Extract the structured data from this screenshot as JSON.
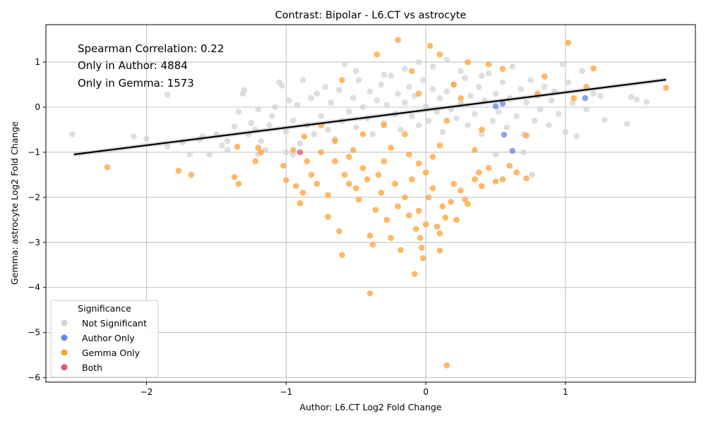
{
  "chart_data": {
    "type": "scatter",
    "title": "Contrast: Bipolar - L6.CT vs astrocyte",
    "xlabel": "Author: L6.CT Log2 Fold Change",
    "ylabel": "Gemma: astrocyte Log2 Fold Change",
    "xlim": [
      -2.72,
      1.93
    ],
    "ylim": [
      -6.1,
      1.83
    ],
    "xticks": [
      -2,
      -1,
      0,
      1
    ],
    "yticks": [
      1,
      0,
      -1,
      -2,
      -3,
      -4,
      -5,
      -6
    ],
    "xtick_labels": [
      "−2",
      "−1",
      "0",
      "1"
    ],
    "ytick_labels": [
      "1",
      "0",
      "−1",
      "−2",
      "−3",
      "−4",
      "−5",
      "−6"
    ],
    "grid": true,
    "annotations": [
      "Spearman Correlation: 0.22",
      "Only in Author: 4884",
      "Only in Gemma: 1573"
    ],
    "regression_line": {
      "x": [
        -2.52,
        1.72
      ],
      "y": [
        -1.05,
        0.61
      ]
    },
    "legend": {
      "title": "Significance",
      "placement": "lower-left"
    },
    "series": [
      {
        "name": "Not Significant",
        "color": "#d3d3d3",
        "points": [
          [
            -2.53,
            -0.6
          ],
          [
            -2.09,
            -0.65
          ],
          [
            -2.0,
            -0.7
          ],
          [
            -1.85,
            -0.87
          ],
          [
            -1.85,
            0.28
          ],
          [
            -1.74,
            -0.78
          ],
          [
            -1.69,
            -1.05
          ],
          [
            -1.62,
            -0.72
          ],
          [
            -1.55,
            -1.05
          ],
          [
            -1.5,
            -0.6
          ],
          [
            -1.46,
            -0.85
          ],
          [
            -1.42,
            -0.75
          ],
          [
            -1.37,
            -0.43
          ],
          [
            -1.34,
            -0.1
          ],
          [
            -1.31,
            0.3
          ],
          [
            -1.3,
            0.38
          ],
          [
            -1.27,
            -0.6
          ],
          [
            -1.25,
            -0.35
          ],
          [
            -1.22,
            -0.5
          ],
          [
            -1.2,
            -0.05
          ],
          [
            -1.18,
            -0.75
          ],
          [
            -1.15,
            -0.95
          ],
          [
            -1.12,
            -0.4
          ],
          [
            -1.1,
            -0.2
          ],
          [
            -1.08,
            0.0
          ],
          [
            -1.05,
            0.55
          ],
          [
            -1.03,
            0.48
          ],
          [
            -1.0,
            -0.55
          ],
          [
            -0.98,
            0.15
          ],
          [
            -0.95,
            -0.3
          ],
          [
            -0.92,
            0.05
          ],
          [
            -0.9,
            -0.8
          ],
          [
            -0.88,
            0.6
          ],
          [
            -0.85,
            -0.4
          ],
          [
            -0.82,
            0.2
          ],
          [
            -0.8,
            -0.6
          ],
          [
            -0.78,
            0.3
          ],
          [
            -0.75,
            -0.2
          ],
          [
            -0.72,
            0.45
          ],
          [
            -0.7,
            -0.5
          ],
          [
            -0.68,
            0.1
          ],
          [
            -0.65,
            -0.7
          ],
          [
            -0.62,
            0.38
          ],
          [
            -0.6,
            -0.3
          ],
          [
            -0.58,
            0.95
          ],
          [
            -0.55,
            -0.1
          ],
          [
            -0.52,
            0.2
          ],
          [
            -0.5,
            -0.45
          ],
          [
            -0.48,
            0.6
          ],
          [
            -0.45,
            0.0
          ],
          [
            -0.42,
            -0.25
          ],
          [
            -0.4,
            0.35
          ],
          [
            -0.38,
            -0.6
          ],
          [
            -0.35,
            0.15
          ],
          [
            -0.32,
            0.5
          ],
          [
            -0.3,
            -0.35
          ],
          [
            -0.28,
            0.05
          ],
          [
            -0.25,
            0.7
          ],
          [
            -0.22,
            -0.15
          ],
          [
            -0.2,
            0.3
          ],
          [
            -0.18,
            -0.5
          ],
          [
            -0.15,
            0.1
          ],
          [
            -0.12,
            0.45
          ],
          [
            -0.1,
            -0.2
          ],
          [
            -0.08,
            0.25
          ],
          [
            -0.05,
            -0.4
          ],
          [
            -0.02,
            0.6
          ],
          [
            0.0,
            0.02
          ],
          [
            0.02,
            -0.3
          ],
          [
            0.05,
            0.4
          ],
          [
            0.08,
            -0.1
          ],
          [
            0.1,
            0.2
          ],
          [
            0.12,
            -0.55
          ],
          [
            0.15,
            0.35
          ],
          [
            0.18,
            -0.05
          ],
          [
            0.2,
            0.5
          ],
          [
            0.22,
            -0.25
          ],
          [
            0.25,
            0.1
          ],
          [
            0.28,
            0.65
          ],
          [
            0.3,
            -0.4
          ],
          [
            0.32,
            0.25
          ],
          [
            0.35,
            -0.15
          ],
          [
            0.38,
            0.45
          ],
          [
            0.4,
            -0.6
          ],
          [
            0.42,
            0.15
          ],
          [
            0.45,
            0.75
          ],
          [
            0.48,
            -0.3
          ],
          [
            0.5,
            0.3
          ],
          [
            0.52,
            -0.1
          ],
          [
            0.55,
            0.55
          ],
          [
            0.58,
            -0.45
          ],
          [
            0.6,
            0.2
          ],
          [
            0.62,
            0.9
          ],
          [
            0.65,
            -0.2
          ],
          [
            0.68,
            0.4
          ],
          [
            0.7,
            -0.6
          ],
          [
            0.72,
            0.1
          ],
          [
            0.75,
            0.6
          ],
          [
            0.78,
            -0.3
          ],
          [
            0.8,
            0.25
          ],
          [
            0.82,
            -0.05
          ],
          [
            0.85,
            0.45
          ],
          [
            0.88,
            -0.4
          ],
          [
            0.9,
            0.15
          ],
          [
            0.92,
            0.35
          ],
          [
            0.95,
            -0.15
          ],
          [
            0.98,
            0.95
          ],
          [
            1.0,
            -0.55
          ],
          [
            1.02,
            0.55
          ],
          [
            1.05,
            0.1
          ],
          [
            1.08,
            -0.65
          ],
          [
            1.12,
            0.8
          ],
          [
            1.15,
            -0.05
          ],
          [
            1.2,
            0.3
          ],
          [
            1.25,
            0.25
          ],
          [
            1.28,
            -0.28
          ],
          [
            1.44,
            -0.37
          ],
          [
            1.47,
            0.23
          ],
          [
            1.51,
            0.17
          ],
          [
            1.58,
            0.12
          ],
          [
            -1.6,
            -0.65
          ],
          [
            -1.42,
            -0.95
          ],
          [
            -1.2,
            -1.05
          ],
          [
            -1.0,
            -1.0
          ],
          [
            -0.95,
            -1.05
          ],
          [
            0.5,
            -1.05
          ],
          [
            0.7,
            -1.0
          ],
          [
            0.76,
            -1.5
          ],
          [
            -0.3,
            0.72
          ],
          [
            -0.15,
            0.85
          ],
          [
            0.05,
            0.9
          ],
          [
            0.25,
            0.8
          ],
          [
            0.4,
            0.7
          ],
          [
            -0.5,
            0.8
          ],
          [
            0.15,
            1.05
          ],
          [
            -0.05,
            1.0
          ]
        ]
      },
      {
        "name": "Author Only",
        "color": "#6a85e0",
        "points": [
          [
            0.56,
            -0.61
          ],
          [
            0.62,
            -0.97
          ],
          [
            1.14,
            0.2
          ],
          [
            0.5,
            0.02
          ],
          [
            0.55,
            0.08
          ]
        ]
      },
      {
        "name": "Gemma Only",
        "color": "#ffa033",
        "points": [
          [
            -2.28,
            -1.33
          ],
          [
            -1.77,
            -1.41
          ],
          [
            -1.68,
            -1.5
          ],
          [
            -1.37,
            -1.55
          ],
          [
            -1.34,
            -1.7
          ],
          [
            -1.35,
            -0.88
          ],
          [
            -1.22,
            -1.2
          ],
          [
            -1.18,
            -1.0
          ],
          [
            -1.02,
            -1.3
          ],
          [
            -1.0,
            -1.62
          ],
          [
            -0.93,
            -1.75
          ],
          [
            -0.9,
            -2.13
          ],
          [
            -0.88,
            -1.9
          ],
          [
            -0.87,
            -0.65
          ],
          [
            -0.85,
            -1.2
          ],
          [
            -0.82,
            -1.5
          ],
          [
            -0.78,
            -1.7
          ],
          [
            -0.75,
            -1.0
          ],
          [
            -0.7,
            -1.95
          ],
          [
            -0.7,
            -2.43
          ],
          [
            -0.65,
            -1.2
          ],
          [
            -0.62,
            -2.75
          ],
          [
            -0.6,
            -3.28
          ],
          [
            -0.58,
            -1.5
          ],
          [
            -0.55,
            -1.7
          ],
          [
            -0.52,
            -0.95
          ],
          [
            -0.5,
            -1.8
          ],
          [
            -0.48,
            -2.05
          ],
          [
            -0.45,
            -1.35
          ],
          [
            -0.42,
            -1.6
          ],
          [
            -0.4,
            -2.85
          ],
          [
            -0.4,
            -4.13
          ],
          [
            -0.38,
            -3.05
          ],
          [
            -0.36,
            -2.28
          ],
          [
            -0.34,
            -1.5
          ],
          [
            -0.32,
            -1.9
          ],
          [
            -0.3,
            -1.2
          ],
          [
            -0.28,
            -2.5
          ],
          [
            -0.25,
            -2.9
          ],
          [
            -0.22,
            -1.7
          ],
          [
            -0.2,
            -2.2
          ],
          [
            -0.18,
            -3.17
          ],
          [
            -0.15,
            -2.0
          ],
          [
            -0.12,
            -2.4
          ],
          [
            -0.1,
            -1.6
          ],
          [
            -0.08,
            -3.7
          ],
          [
            -0.07,
            -2.7
          ],
          [
            -0.05,
            -2.3
          ],
          [
            -0.04,
            -2.9
          ],
          [
            -0.03,
            -3.12
          ],
          [
            -0.02,
            -3.35
          ],
          [
            0.0,
            -2.6
          ],
          [
            0.02,
            -2.0
          ],
          [
            0.05,
            -1.8
          ],
          [
            0.08,
            -2.65
          ],
          [
            0.1,
            -2.8
          ],
          [
            0.1,
            -3.18
          ],
          [
            0.12,
            -2.2
          ],
          [
            0.14,
            -2.45
          ],
          [
            0.15,
            -5.73
          ],
          [
            0.18,
            -2.1
          ],
          [
            0.2,
            -1.7
          ],
          [
            0.22,
            -2.5
          ],
          [
            0.25,
            -1.85
          ],
          [
            0.28,
            -2.05
          ],
          [
            0.3,
            -2.15
          ],
          [
            0.35,
            -1.6
          ],
          [
            0.38,
            -1.45
          ],
          [
            0.4,
            -1.75
          ],
          [
            0.45,
            -1.35
          ],
          [
            0.5,
            -1.65
          ],
          [
            0.55,
            -1.6
          ],
          [
            0.6,
            -1.3
          ],
          [
            0.65,
            -1.45
          ],
          [
            0.72,
            -1.58
          ],
          [
            0.72,
            -0.63
          ],
          [
            0.8,
            0.3
          ],
          [
            0.85,
            0.68
          ],
          [
            1.02,
            1.43
          ],
          [
            1.06,
            0.2
          ],
          [
            1.15,
            0.45
          ],
          [
            1.2,
            0.86
          ],
          [
            1.72,
            0.43
          ],
          [
            -0.2,
            1.49
          ],
          [
            0.03,
            1.36
          ],
          [
            0.1,
            1.17
          ],
          [
            -0.35,
            1.17
          ],
          [
            -0.6,
            0.6
          ],
          [
            0.45,
            0.95
          ],
          [
            0.55,
            0.85
          ],
          [
            0.3,
            1.0
          ],
          [
            -0.1,
            0.8
          ],
          [
            0.2,
            0.5
          ],
          [
            -0.05,
            0.3
          ],
          [
            0.15,
            -0.3
          ],
          [
            -0.15,
            -0.6
          ],
          [
            -0.25,
            -0.9
          ],
          [
            0.05,
            -1.1
          ],
          [
            -0.05,
            -1.25
          ],
          [
            0.0,
            -1.45
          ],
          [
            -0.12,
            -1.05
          ],
          [
            0.1,
            -0.85
          ],
          [
            -0.3,
            -0.4
          ],
          [
            0.25,
            0.2
          ],
          [
            -0.45,
            -0.6
          ],
          [
            -0.55,
            -1.1
          ],
          [
            0.35,
            -0.95
          ],
          [
            -0.65,
            -0.75
          ],
          [
            0.4,
            -0.5
          ],
          [
            -0.75,
            -0.4
          ],
          [
            -0.95,
            -0.95
          ],
          [
            -1.2,
            -0.9
          ]
        ]
      },
      {
        "name": "Both",
        "color": "#e05a6a",
        "points": [
          [
            -0.9,
            -1.0
          ]
        ]
      }
    ]
  }
}
